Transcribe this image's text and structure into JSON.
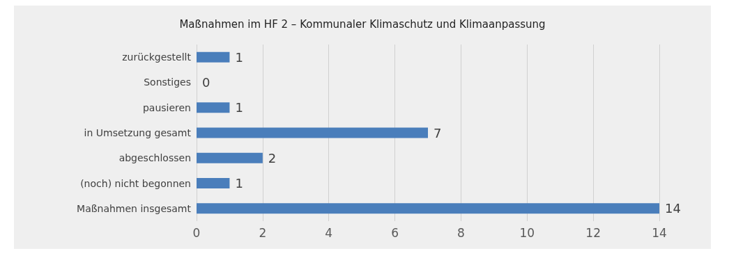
{
  "chart_data": {
    "type": "bar",
    "orientation": "horizontal",
    "title": "Maßnahmen im HF 2 – Kommunaler Klimaschutz und Klimaanpassung",
    "categories": [
      "zurückgestellt",
      "Sonstiges",
      "pausieren",
      "in Umsetzung gesamt",
      "abgeschlossen",
      "(noch) nicht begonnen",
      "Maßnahmen insgesamt"
    ],
    "values": [
      1,
      0,
      1,
      7,
      2,
      1,
      14
    ],
    "color": "#4a7ebb",
    "xlim": [
      0,
      14
    ],
    "xticks": [
      0,
      2,
      4,
      6,
      8,
      10,
      12,
      14
    ],
    "grid": "x",
    "data_labels": true
  }
}
